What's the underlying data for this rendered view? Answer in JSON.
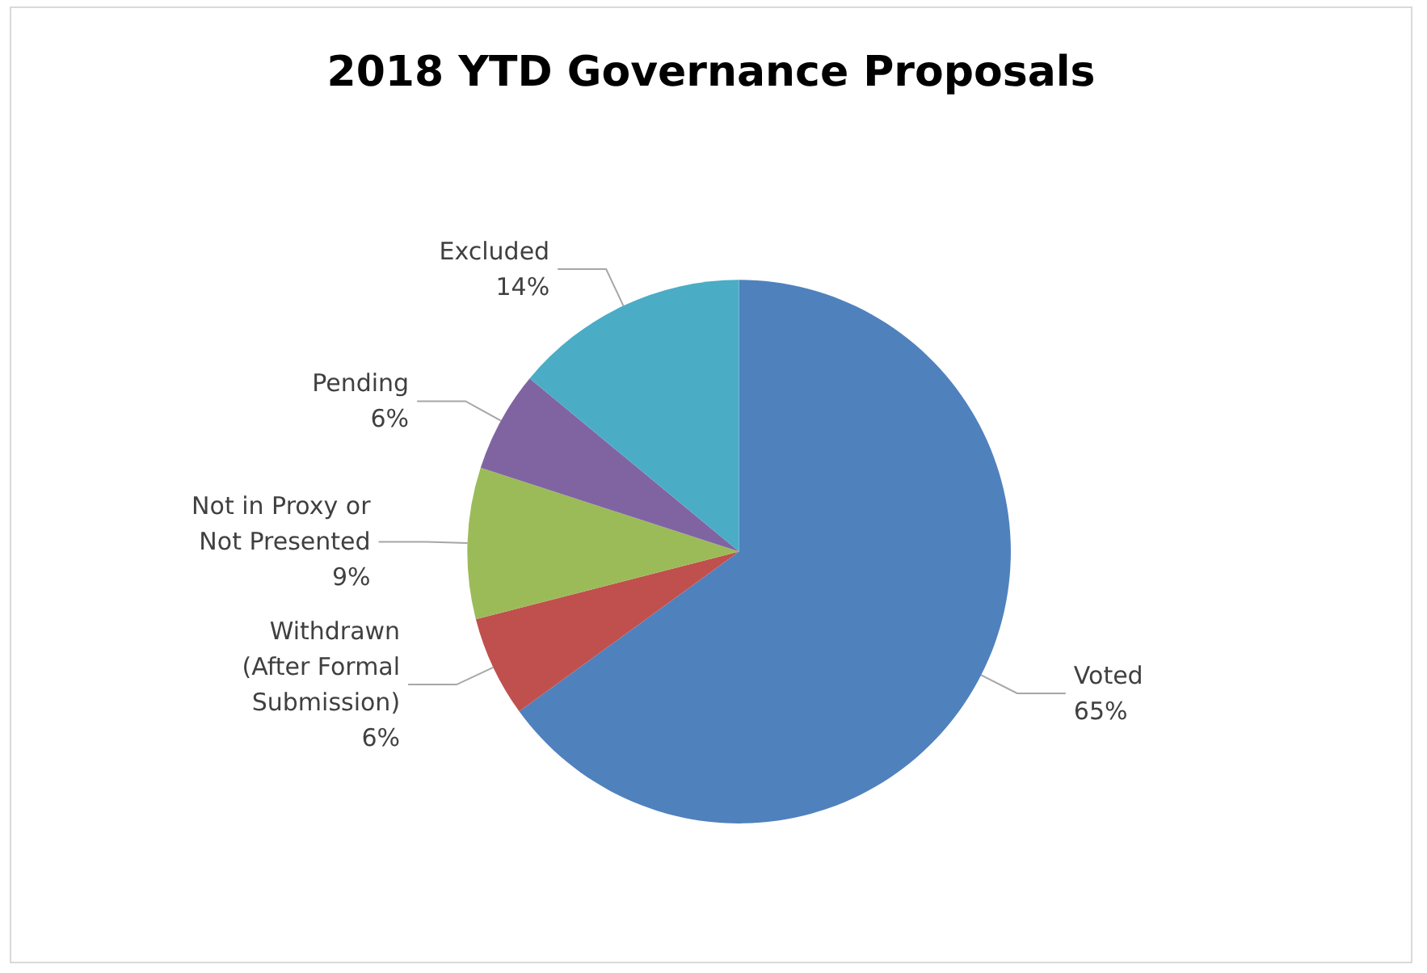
{
  "chart_data": {
    "type": "pie",
    "title": "2018 YTD Governance Proposals",
    "categories": [
      "Voted",
      "Withdrawn\n(After Formal\nSubmission)",
      "Not in Proxy or\nNot Presented",
      "Pending",
      "Excluded"
    ],
    "values": [
      65,
      6,
      9,
      6,
      14
    ],
    "colors": [
      "#4f81bd",
      "#c0504d",
      "#9bbb59",
      "#8064a2",
      "#4bacc6"
    ],
    "value_labels": [
      "65%",
      "6%",
      "9%",
      "6%",
      "14%"
    ]
  }
}
